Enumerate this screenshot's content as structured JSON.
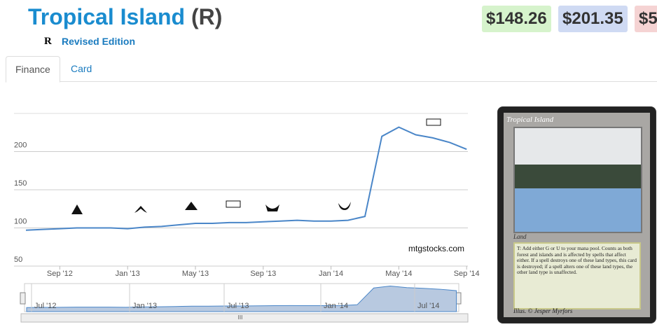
{
  "header": {
    "title": "Tropical Island",
    "rarity": "(R)",
    "set_symbol": "R",
    "set_name": "Revised Edition"
  },
  "prices": [
    "$148.26",
    "$201.35",
    "$5"
  ],
  "tabs": [
    "Finance",
    "Card"
  ],
  "chart_data": {
    "type": "line",
    "categories": [
      null,
      null,
      "Sep '12",
      null,
      null,
      null,
      "Jan '13",
      null,
      null,
      null,
      "May '13",
      null,
      null,
      null,
      "Sep '13",
      null,
      null,
      null,
      "Jan '14",
      null,
      null,
      null,
      "May '14",
      null,
      null,
      null,
      "Sep '14"
    ],
    "values": [
      97,
      98,
      99,
      100,
      100,
      100,
      99,
      101,
      102,
      104,
      106,
      106,
      107,
      107,
      108,
      109,
      110,
      109,
      109,
      110,
      115,
      220,
      232,
      222,
      218,
      212,
      203
    ],
    "color": "#4a86c8",
    "ylim": [
      50,
      250
    ],
    "yticks": [
      50,
      100,
      150,
      200
    ],
    "grid": true,
    "watermark": "mtgstocks.com"
  },
  "navigator": {
    "labels": [
      "Jul '12",
      "Jan '13",
      "Jul '13",
      "Jan '14",
      "Jul '14"
    ],
    "scroll_label": "III"
  },
  "card": {
    "name": "Tropical Island",
    "type_line": "Land",
    "rules": "T: Add either G or U to your mana pool. Counts as both forest and islands and is affected by spells that affect either. If a spell destroys one of these land types, this card is destroyed; if a spell alters one of these land types, the other land type is unaffected.",
    "artist": "Illus. © Jesper Myrfors"
  }
}
